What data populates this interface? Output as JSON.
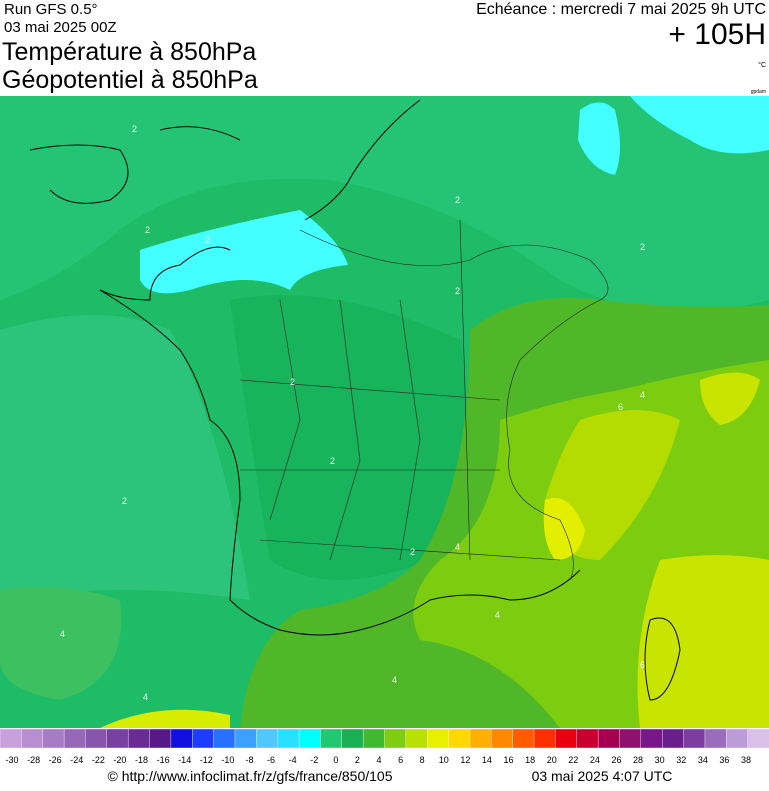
{
  "header": {
    "run": "Run GFS 0.5°",
    "run_date": "03 mai 2025 00Z",
    "title_1": "Température à 850hPa",
    "title_2": "Géopotentiel à 850hPa",
    "valid": "Echéance : mercredi 7 mai 2025 9h UTC",
    "lead": "+ 105H",
    "unit": "°C",
    "unit_2": "gpdam"
  },
  "contour_labels": [
    "2",
    "2",
    "2",
    "2",
    "2",
    "2",
    "2",
    "2",
    "2",
    "2",
    "4",
    "4",
    "4",
    "4",
    "4",
    "6",
    "4",
    "6"
  ],
  "colorbar": {
    "labels": [
      -30,
      -28,
      -26,
      -24,
      -22,
      -20,
      -18,
      -16,
      -14,
      -12,
      -10,
      -8,
      -6,
      -4,
      -2,
      0,
      2,
      4,
      6,
      8,
      10,
      12,
      14,
      16,
      18,
      20,
      22,
      24,
      26,
      28,
      30,
      32,
      34,
      36,
      38
    ],
    "colors": [
      "#c8a0dc",
      "#b88ed0",
      "#a87cc4",
      "#9868b8",
      "#8854ac",
      "#7840a0",
      "#682c94",
      "#581888",
      "#1010e0",
      "#1e3cff",
      "#2870ff",
      "#3ca0ff",
      "#50c8ff",
      "#28e0ff",
      "#00ffff",
      "#20c870",
      "#18b050",
      "#40b830",
      "#80cc10",
      "#b8e000",
      "#e8f000",
      "#ffd800",
      "#ffb000",
      "#ff8800",
      "#ff5c00",
      "#ff3000",
      "#e80010",
      "#c80030",
      "#a80050",
      "#901070",
      "#781888",
      "#6a1e8c",
      "#7c3ca0",
      "#9c6cbc",
      "#bc9cd8",
      "#d8c0e8"
    ]
  },
  "footer": {
    "url": "© http://www.infoclimat.fr/z/gfs/france/850/105",
    "generated": "03 mai 2025  4:07 UTC"
  }
}
